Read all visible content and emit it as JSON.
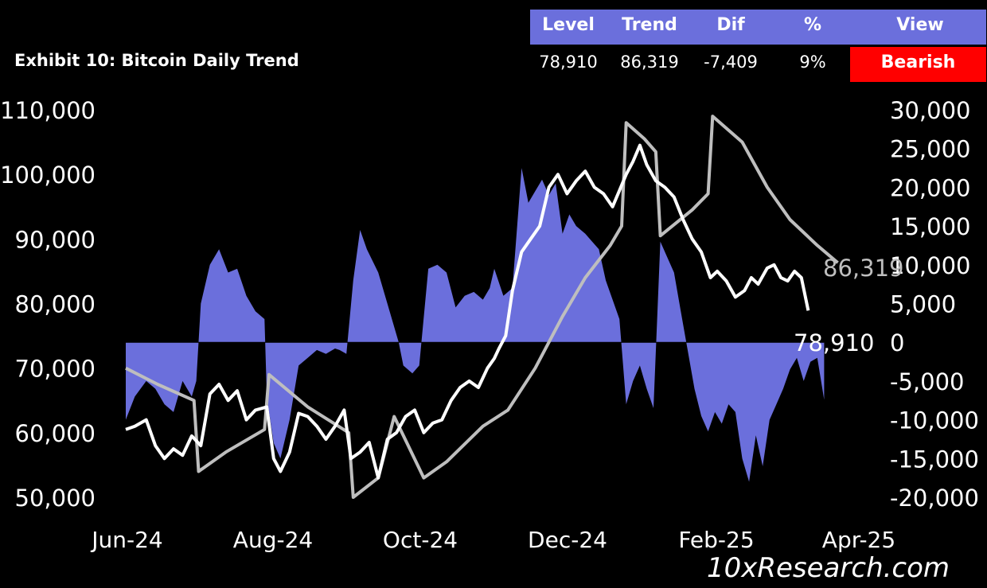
{
  "header": {
    "title": "Exhibit 10: Bitcoin Daily Trend",
    "columns": [
      "Level",
      "Trend",
      "Dif",
      "%",
      "View"
    ],
    "values": [
      "78,910",
      "86,319",
      "-7,409",
      "9%"
    ],
    "view": "Bearish"
  },
  "watermark": "10xResearch.com",
  "colors": {
    "price": "#ffffff",
    "trend": "#bebebe",
    "dif": "#6b6fdc",
    "header_bg": "#6b6fdc",
    "bearish": "#ff0000"
  },
  "chart_data": {
    "type": "line",
    "x_labels": [
      "Jun-24",
      "Aug-24",
      "Oct-24",
      "Dec-24",
      "Feb-25",
      "Apr-25"
    ],
    "x_range": [
      "2024-06-01",
      "2025-04-01"
    ],
    "y_left": {
      "range": [
        50000,
        110000
      ],
      "ticks": [
        "110,000",
        "100,000",
        "90,000",
        "80,000",
        "70,000",
        "60,000",
        "50,000"
      ]
    },
    "y_right": {
      "range": [
        -20000,
        30000
      ],
      "ticks": [
        "30,000",
        "25,000",
        "20,000",
        "15,000",
        "10,000",
        "5,000",
        "0",
        "-5,000",
        "-10,000",
        "-15,000",
        "-20,000"
      ]
    },
    "annotations": {
      "trend_end": "86,319",
      "price_end": "78,910"
    },
    "series": [
      {
        "key": "price",
        "axis": "left",
        "points": [
          [
            "2024-06-01",
            60500
          ],
          [
            "2024-06-05",
            61000
          ],
          [
            "2024-06-10",
            62000
          ],
          [
            "2024-06-14",
            58000
          ],
          [
            "2024-06-18",
            56000
          ],
          [
            "2024-06-22",
            57500
          ],
          [
            "2024-06-26",
            56500
          ],
          [
            "2024-06-30",
            59500
          ],
          [
            "2024-07-04",
            58000
          ],
          [
            "2024-07-08",
            66000
          ],
          [
            "2024-07-12",
            67500
          ],
          [
            "2024-07-16",
            65000
          ],
          [
            "2024-07-20",
            66500
          ],
          [
            "2024-07-24",
            62000
          ],
          [
            "2024-07-28",
            63500
          ],
          [
            "2024-08-02",
            64000
          ],
          [
            "2024-08-05",
            56000
          ],
          [
            "2024-08-08",
            54000
          ],
          [
            "2024-08-12",
            57000
          ],
          [
            "2024-08-16",
            63000
          ],
          [
            "2024-08-20",
            62500
          ],
          [
            "2024-08-24",
            61000
          ],
          [
            "2024-08-28",
            59000
          ],
          [
            "2024-09-01",
            61000
          ],
          [
            "2024-09-05",
            63500
          ],
          [
            "2024-09-08",
            56000
          ],
          [
            "2024-09-12",
            57000
          ],
          [
            "2024-09-16",
            58500
          ],
          [
            "2024-09-20",
            53000
          ],
          [
            "2024-09-24",
            59000
          ],
          [
            "2024-09-28",
            60000
          ],
          [
            "2024-10-02",
            62500
          ],
          [
            "2024-10-06",
            63500
          ],
          [
            "2024-10-10",
            60000
          ],
          [
            "2024-10-14",
            61500
          ],
          [
            "2024-10-18",
            62000
          ],
          [
            "2024-10-22",
            65000
          ],
          [
            "2024-10-26",
            67000
          ],
          [
            "2024-10-30",
            68000
          ],
          [
            "2024-11-03",
            67000
          ],
          [
            "2024-11-07",
            70000
          ],
          [
            "2024-11-10",
            71500
          ],
          [
            "2024-11-12",
            73000
          ],
          [
            "2024-11-15",
            75000
          ],
          [
            "2024-11-18",
            82000
          ],
          [
            "2024-11-22",
            88000
          ],
          [
            "2024-11-26",
            90000
          ],
          [
            "2024-11-30",
            92000
          ],
          [
            "2024-12-04",
            98000
          ],
          [
            "2024-12-08",
            100000
          ],
          [
            "2024-12-12",
            97000
          ],
          [
            "2024-12-16",
            99000
          ],
          [
            "2024-12-20",
            100500
          ],
          [
            "2024-12-24",
            98000
          ],
          [
            "2024-12-28",
            97000
          ],
          [
            "2025-01-01",
            95000
          ],
          [
            "2025-01-04",
            97500
          ],
          [
            "2025-01-07",
            100000
          ],
          [
            "2025-01-10",
            102000
          ],
          [
            "2025-01-13",
            104500
          ],
          [
            "2025-01-16",
            101500
          ],
          [
            "2025-01-20",
            99000
          ],
          [
            "2025-01-24",
            98000
          ],
          [
            "2025-01-28",
            96500
          ],
          [
            "2025-02-01",
            93000
          ],
          [
            "2025-02-05",
            90000
          ],
          [
            "2025-02-09",
            88000
          ],
          [
            "2025-02-13",
            84000
          ],
          [
            "2025-02-16",
            85000
          ],
          [
            "2025-02-20",
            83500
          ],
          [
            "2025-02-24",
            81000
          ],
          [
            "2025-02-28",
            82000
          ],
          [
            "2025-03-03",
            84000
          ],
          [
            "2025-03-06",
            83000
          ],
          [
            "2025-03-10",
            85500
          ],
          [
            "2025-03-13",
            86000
          ],
          [
            "2025-03-16",
            84000
          ],
          [
            "2025-03-19",
            83500
          ],
          [
            "2025-03-22",
            85000
          ],
          [
            "2025-03-25",
            84000
          ],
          [
            "2025-03-28",
            78910
          ]
        ]
      },
      {
        "key": "trend",
        "axis": "left",
        "points": [
          [
            "2024-06-01",
            70000
          ],
          [
            "2024-06-15",
            67500
          ],
          [
            "2024-07-01",
            65000
          ],
          [
            "2024-07-03",
            54000
          ],
          [
            "2024-07-15",
            57000
          ],
          [
            "2024-08-01",
            60500
          ],
          [
            "2024-08-03",
            69000
          ],
          [
            "2024-08-20",
            64000
          ],
          [
            "2024-09-07",
            60000
          ],
          [
            "2024-09-09",
            50000
          ],
          [
            "2024-09-20",
            53000
          ],
          [
            "2024-09-27",
            62500
          ],
          [
            "2024-10-10",
            53000
          ],
          [
            "2024-10-20",
            55500
          ],
          [
            "2024-11-05",
            61000
          ],
          [
            "2024-11-16",
            63500
          ],
          [
            "2024-11-28",
            70000
          ],
          [
            "2024-12-10",
            78000
          ],
          [
            "2024-12-20",
            84000
          ],
          [
            "2024-12-31",
            89000
          ],
          [
            "2025-01-05",
            92000
          ],
          [
            "2025-01-07",
            108000
          ],
          [
            "2025-01-15",
            105500
          ],
          [
            "2025-01-20",
            103500
          ],
          [
            "2025-01-22",
            90500
          ],
          [
            "2025-02-05",
            94500
          ],
          [
            "2025-02-12",
            97000
          ],
          [
            "2025-02-14",
            109000
          ],
          [
            "2025-02-27",
            105000
          ],
          [
            "2025-03-10",
            98000
          ],
          [
            "2025-03-20",
            93000
          ],
          [
            "2025-04-01",
            89000
          ],
          [
            "2025-04-10",
            86319
          ]
        ]
      },
      {
        "key": "dif",
        "axis": "right",
        "points": [
          [
            "2024-06-01",
            -10000
          ],
          [
            "2024-06-05",
            -7000
          ],
          [
            "2024-06-10",
            -5000
          ],
          [
            "2024-06-14",
            -6000
          ],
          [
            "2024-06-18",
            -8000
          ],
          [
            "2024-06-22",
            -9000
          ],
          [
            "2024-06-26",
            -5000
          ],
          [
            "2024-06-30",
            -7000
          ],
          [
            "2024-07-02",
            -5000
          ],
          [
            "2024-07-04",
            5000
          ],
          [
            "2024-07-08",
            10000
          ],
          [
            "2024-07-12",
            12000
          ],
          [
            "2024-07-16",
            9000
          ],
          [
            "2024-07-20",
            9500
          ],
          [
            "2024-07-24",
            6000
          ],
          [
            "2024-07-28",
            4000
          ],
          [
            "2024-08-01",
            3000
          ],
          [
            "2024-08-02",
            -7000
          ],
          [
            "2024-08-05",
            -13000
          ],
          [
            "2024-08-08",
            -15000
          ],
          [
            "2024-08-12",
            -10000
          ],
          [
            "2024-08-16",
            -3000
          ],
          [
            "2024-08-20",
            -2000
          ],
          [
            "2024-08-24",
            -1000
          ],
          [
            "2024-08-28",
            -1500
          ],
          [
            "2024-09-01",
            -800
          ],
          [
            "2024-09-03",
            -1000
          ],
          [
            "2024-09-06",
            -1500
          ],
          [
            "2024-09-09",
            8000
          ],
          [
            "2024-09-12",
            14500
          ],
          [
            "2024-09-15",
            12000
          ],
          [
            "2024-09-20",
            9000
          ],
          [
            "2024-09-25",
            4000
          ],
          [
            "2024-09-29",
            0
          ],
          [
            "2024-10-01",
            -3000
          ],
          [
            "2024-10-05",
            -4000
          ],
          [
            "2024-10-08",
            -3000
          ],
          [
            "2024-10-12",
            9500
          ],
          [
            "2024-10-16",
            10000
          ],
          [
            "2024-10-20",
            9000
          ],
          [
            "2024-10-24",
            4500
          ],
          [
            "2024-10-28",
            6000
          ],
          [
            "2024-11-01",
            6500
          ],
          [
            "2024-11-05",
            5500
          ],
          [
            "2024-11-08",
            7000
          ],
          [
            "2024-11-10",
            9500
          ],
          [
            "2024-11-14",
            6000
          ],
          [
            "2024-11-18",
            7000
          ],
          [
            "2024-11-22",
            22500
          ],
          [
            "2024-11-25",
            18000
          ],
          [
            "2024-11-28",
            19500
          ],
          [
            "2024-12-01",
            21000
          ],
          [
            "2024-12-04",
            19000
          ],
          [
            "2024-12-07",
            20500
          ],
          [
            "2024-12-10",
            14000
          ],
          [
            "2024-12-13",
            16500
          ],
          [
            "2024-12-16",
            15000
          ],
          [
            "2024-12-20",
            14000
          ],
          [
            "2024-12-23",
            13000
          ],
          [
            "2024-12-26",
            12000
          ],
          [
            "2024-12-29",
            8000
          ],
          [
            "2025-01-01",
            5500
          ],
          [
            "2025-01-04",
            3000
          ],
          [
            "2025-01-07",
            -8000
          ],
          [
            "2025-01-10",
            -5000
          ],
          [
            "2025-01-13",
            -3000
          ],
          [
            "2025-01-16",
            -6000
          ],
          [
            "2025-01-19",
            -8500
          ],
          [
            "2025-01-22",
            13000
          ],
          [
            "2025-01-25",
            11000
          ],
          [
            "2025-01-28",
            9000
          ],
          [
            "2025-01-31",
            4000
          ],
          [
            "2025-02-03",
            -1000
          ],
          [
            "2025-02-06",
            -6000
          ],
          [
            "2025-02-09",
            -9500
          ],
          [
            "2025-02-12",
            -11500
          ],
          [
            "2025-02-15",
            -9000
          ],
          [
            "2025-02-18",
            -10500
          ],
          [
            "2025-02-21",
            -8000
          ],
          [
            "2025-02-24",
            -9000
          ],
          [
            "2025-02-27",
            -15000
          ],
          [
            "2025-03-02",
            -18000
          ],
          [
            "2025-03-05",
            -12000
          ],
          [
            "2025-03-08",
            -16000
          ],
          [
            "2025-03-11",
            -10000
          ],
          [
            "2025-03-14",
            -8000
          ],
          [
            "2025-03-17",
            -6000
          ],
          [
            "2025-03-20",
            -3500
          ],
          [
            "2025-03-23",
            -2000
          ],
          [
            "2025-03-26",
            -5000
          ],
          [
            "2025-03-29",
            -2500
          ],
          [
            "2025-04-01",
            -2000
          ],
          [
            "2025-04-04",
            -7409
          ]
        ]
      }
    ]
  }
}
